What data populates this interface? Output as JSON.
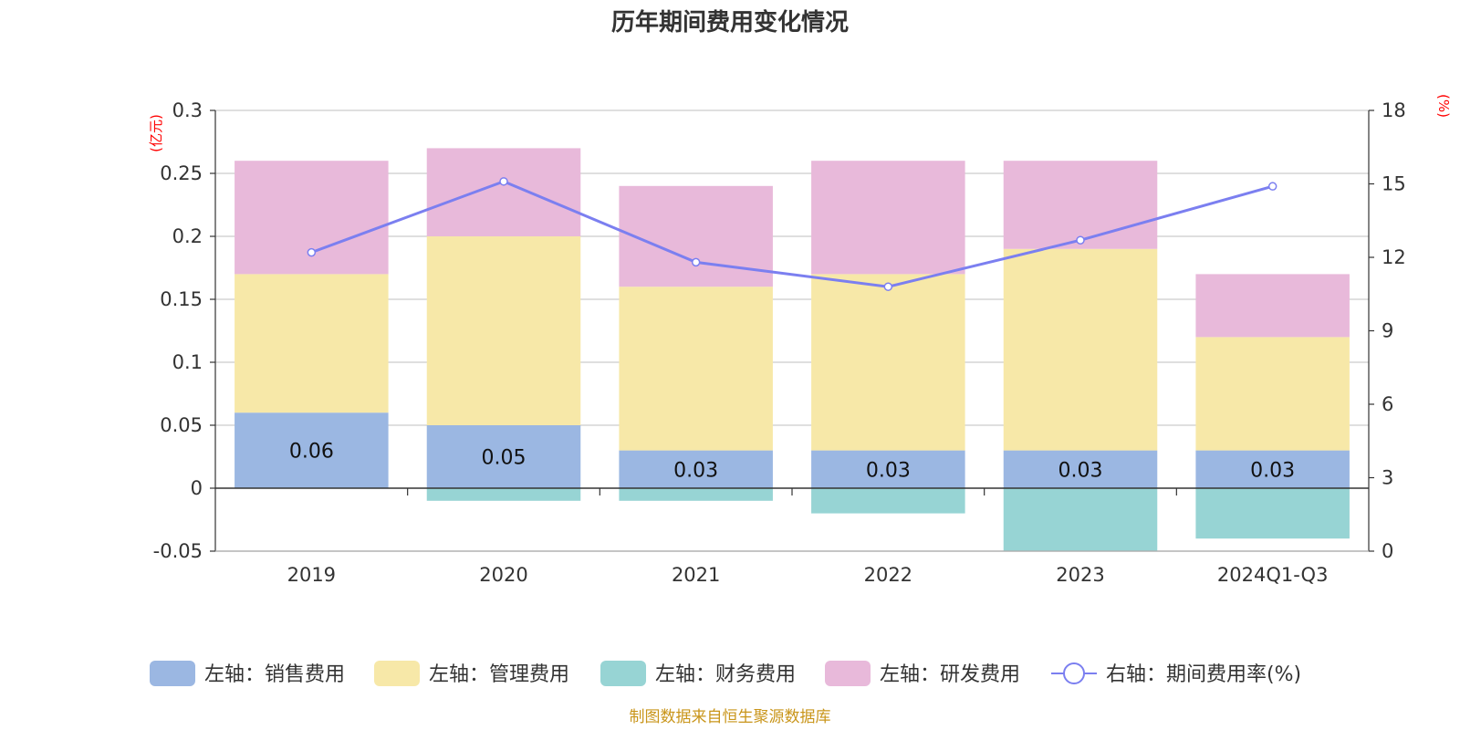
{
  "chart_data": {
    "type": "bar",
    "title": "历年期间费用变化情况",
    "categories": [
      "2019",
      "2020",
      "2021",
      "2022",
      "2023",
      "2024Q1-Q3"
    ],
    "left_axis": {
      "unit": "(亿元)",
      "ylim": [
        -0.05,
        0.3
      ],
      "ticks": [
        0.3,
        0.25,
        0.2,
        0.15,
        0.1,
        0.05,
        0,
        -0.05
      ],
      "tick_labels": [
        "0.3",
        "0.25",
        "0.2",
        "0.15",
        "0.1",
        "0.05",
        "0",
        "-0.05"
      ]
    },
    "right_axis": {
      "unit": "(%)",
      "ylim": [
        0,
        18
      ],
      "ticks": [
        18,
        15,
        12,
        9,
        6,
        3,
        0
      ],
      "tick_labels": [
        "18",
        "15",
        "12",
        "9",
        "6",
        "3",
        "0"
      ]
    },
    "series": [
      {
        "name": "左轴：销售费用",
        "kind": "bar",
        "axis": "left",
        "color": "#9bb7e2",
        "values": [
          0.06,
          0.05,
          0.03,
          0.03,
          0.03,
          0.03
        ],
        "labels": [
          "0.06",
          "0.05",
          "0.03",
          "0.03",
          "0.03",
          "0.03"
        ]
      },
      {
        "name": "左轴：管理费用",
        "kind": "bar",
        "axis": "left",
        "color": "#f7e8a8",
        "values": [
          0.11,
          0.15,
          0.13,
          0.14,
          0.16,
          0.09
        ]
      },
      {
        "name": "左轴：财务费用",
        "kind": "bar",
        "axis": "left",
        "color": "#97d4d4",
        "values": [
          0,
          -0.01,
          -0.01,
          -0.02,
          -0.05,
          -0.04
        ]
      },
      {
        "name": "左轴：研发费用",
        "kind": "bar",
        "axis": "left",
        "color": "#e8b9da",
        "values": [
          0.09,
          0.07,
          0.08,
          0.09,
          0.07,
          0.05
        ]
      },
      {
        "name": "右轴：期间费用率(%)",
        "kind": "line",
        "axis": "right",
        "color": "#7b7ff0",
        "values": [
          12.2,
          15.1,
          11.8,
          10.8,
          12.7,
          14.9
        ]
      }
    ],
    "grid": true,
    "legend_position": "bottom"
  },
  "source_note": "制图数据来自恒生聚源数据库"
}
